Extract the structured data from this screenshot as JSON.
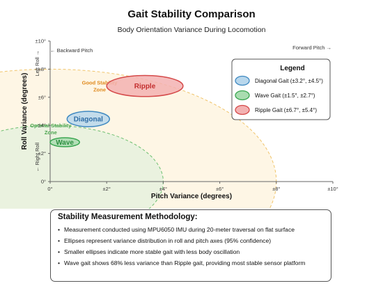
{
  "chart_data": {
    "type": "scatter",
    "title": "Gait Stability Comparison",
    "subtitle": "Body Orientation Variance During Locomotion",
    "xlabel": "Pitch Variance (degrees)",
    "ylabel": "Roll Variance (degrees)",
    "xlim": [
      0,
      10
    ],
    "ylim": [
      0,
      10
    ],
    "x_ticks": [
      0,
      2,
      4,
      6,
      8,
      10
    ],
    "y_ticks": [
      0,
      2,
      4,
      6,
      8,
      10
    ],
    "x_tick_labels": [
      "0°",
      "±2°",
      "±4°",
      "±6°",
      "±8°",
      "±10°"
    ],
    "y_tick_labels": [
      "0°",
      "±2°",
      "±4°",
      "±6°",
      "±8°",
      "±10°"
    ],
    "direction_labels": {
      "backward_pitch": "← Backward Pitch",
      "forward_pitch": "Forward Pitch →",
      "left_roll": "Left Roll →",
      "right_roll": "← Right Roll"
    },
    "grid": false,
    "legend": {
      "title": "Legend",
      "placement": "top-right"
    },
    "zones": [
      {
        "label": "Good Stability Zone",
        "radius": 8,
        "center": [
          0,
          0
        ],
        "fill": "#fdf3dc",
        "stroke": "#f0c46a"
      },
      {
        "label": "Optimal Stability Zone",
        "radius": 4,
        "center": [
          0,
          0
        ],
        "fill": "#e3f0dc",
        "stroke": "#6cbf6f"
      }
    ],
    "series": [
      {
        "name": "Ripple",
        "legend_label": "Ripple Gait (±6.7°, ±5.4°)",
        "center": [
          3.35,
          6.8
        ],
        "radius": [
          1.35,
          0.75
        ],
        "fill": "#f3b2b2",
        "stroke": "#d54a4a",
        "text_color": "#c42f2f"
      },
      {
        "name": "Diagonal",
        "legend_label": "Diagonal Gait (±3.2°, ±4.5°)",
        "center": [
          1.35,
          4.45
        ],
        "radius": [
          0.75,
          0.55
        ],
        "fill": "#b8d7ec",
        "stroke": "#3f89c1",
        "text_color": "#2f6ea6"
      },
      {
        "name": "Wave",
        "legend_label": "Wave Gait (±1.5°, ±2.7°)",
        "center": [
          0.52,
          2.8
        ],
        "radius": [
          0.52,
          0.32
        ],
        "fill": "#a9dcb0",
        "stroke": "#3aa651",
        "text_color": "#2e8f41"
      }
    ]
  },
  "methodology": {
    "title": "Stability Measurement Methodology:",
    "items": [
      "Measurement conducted using MPU6050 IMU during 20-meter traversal on flat surface",
      "Ellipses represent variance distribution in roll and pitch axes (95% confidence)",
      "Smaller ellipses indicate more stable gait with less body oscillation",
      "Wave gait shows 68% less variance than Ripple gait, providing most stable sensor platform"
    ]
  }
}
